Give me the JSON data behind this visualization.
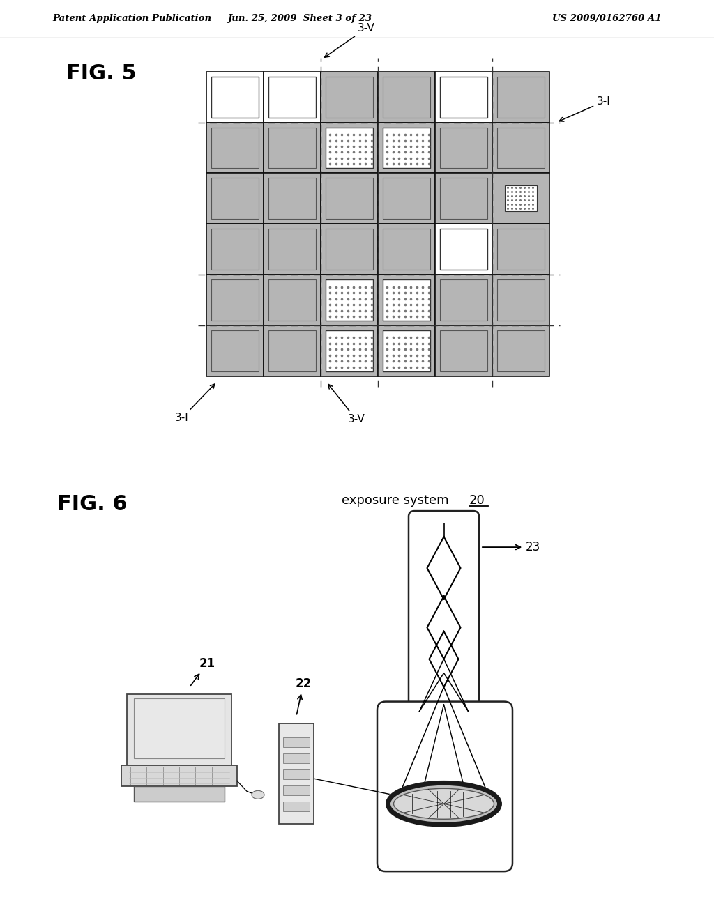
{
  "header_left": "Patent Application Publication",
  "header_mid": "Jun. 25, 2009  Sheet 3 of 23",
  "header_right": "US 2009/0162760 A1",
  "fig5_label": "FIG. 5",
  "fig6_label": "FIG. 6",
  "label_3V": "3-V",
  "label_3I": "3-I",
  "fig6_title1": "exposure system ",
  "fig6_title2": "20",
  "label_21": "21",
  "label_22": "22",
  "label_23": "23",
  "bg_color": "#ffffff",
  "gray": "#b8b8b8",
  "dot_gray": "#d0d0d0"
}
